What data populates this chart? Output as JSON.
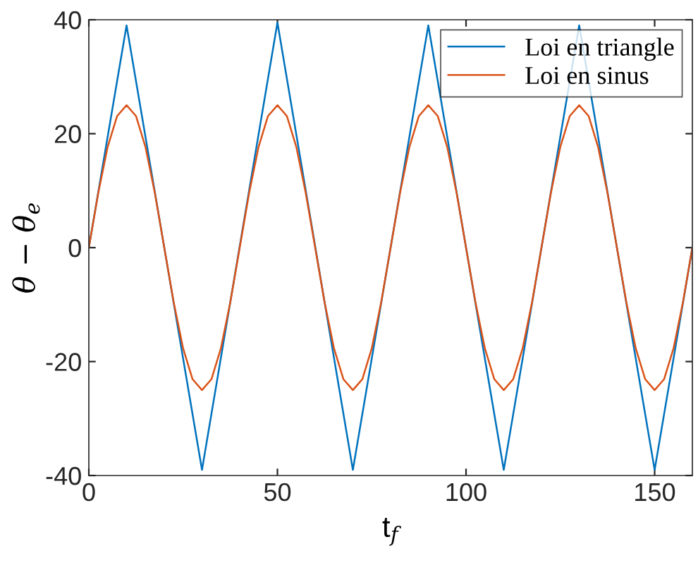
{
  "chart_data": {
    "type": "line",
    "xlabel": "t$_{f}$",
    "ylabel": "θ − θ$_{e}$",
    "xlim": [
      0,
      160
    ],
    "ylim": [
      -40,
      40
    ],
    "xticks": [
      0,
      50,
      100,
      150
    ],
    "yticks": [
      -40,
      -20,
      0,
      20,
      40
    ],
    "grid": false,
    "legend": "top right",
    "marker": "none",
    "line_style": "solid",
    "series": [
      {
        "name": "Loi en triangle",
        "color": "#0072bd",
        "x": [
          0,
          10,
          30,
          50,
          70,
          90,
          110,
          130,
          150,
          160
        ],
        "values": [
          0,
          39,
          -39,
          39.5,
          -39,
          39,
          -39,
          39,
          -39,
          0
        ]
      },
      {
        "name": "Loi en sinus",
        "color": "#d95319",
        "x": [
          0,
          2.5,
          5,
          7.5,
          10,
          12.5,
          15,
          17.5,
          20,
          22.5,
          25,
          27.5,
          30,
          32.5,
          35,
          37.5,
          40,
          42.5,
          45,
          47.5,
          50,
          52.5,
          55,
          57.5,
          60,
          62.5,
          65,
          67.5,
          70,
          72.5,
          75,
          77.5,
          80,
          82.5,
          85,
          87.5,
          90,
          92.5,
          95,
          97.5,
          100,
          102.5,
          105,
          107.5,
          110,
          112.5,
          115,
          117.5,
          120,
          122.5,
          125,
          127.5,
          130,
          132.5,
          135,
          137.5,
          140,
          142.5,
          145,
          147.5,
          150,
          152.5,
          155,
          157.5,
          160
        ],
        "values": [
          0,
          9.6,
          17.7,
          23.1,
          25,
          23.1,
          17.7,
          9.6,
          0,
          -9.6,
          -17.7,
          -23.1,
          -25,
          -23.1,
          -17.7,
          -9.6,
          0,
          9.6,
          17.7,
          23.1,
          25,
          23.1,
          17.7,
          9.6,
          0,
          -9.6,
          -17.7,
          -23.1,
          -25,
          -23.1,
          -17.7,
          -9.6,
          0,
          9.6,
          17.7,
          23.1,
          25,
          23.1,
          17.7,
          9.6,
          0,
          -9.6,
          -17.7,
          -23.1,
          -25,
          -23.1,
          -17.7,
          -9.6,
          0,
          9.6,
          17.7,
          23.1,
          25,
          23.1,
          17.7,
          9.6,
          0,
          -9.6,
          -17.7,
          -23.1,
          -25,
          -23.1,
          -17.7,
          -9.6,
          0
        ]
      }
    ]
  }
}
